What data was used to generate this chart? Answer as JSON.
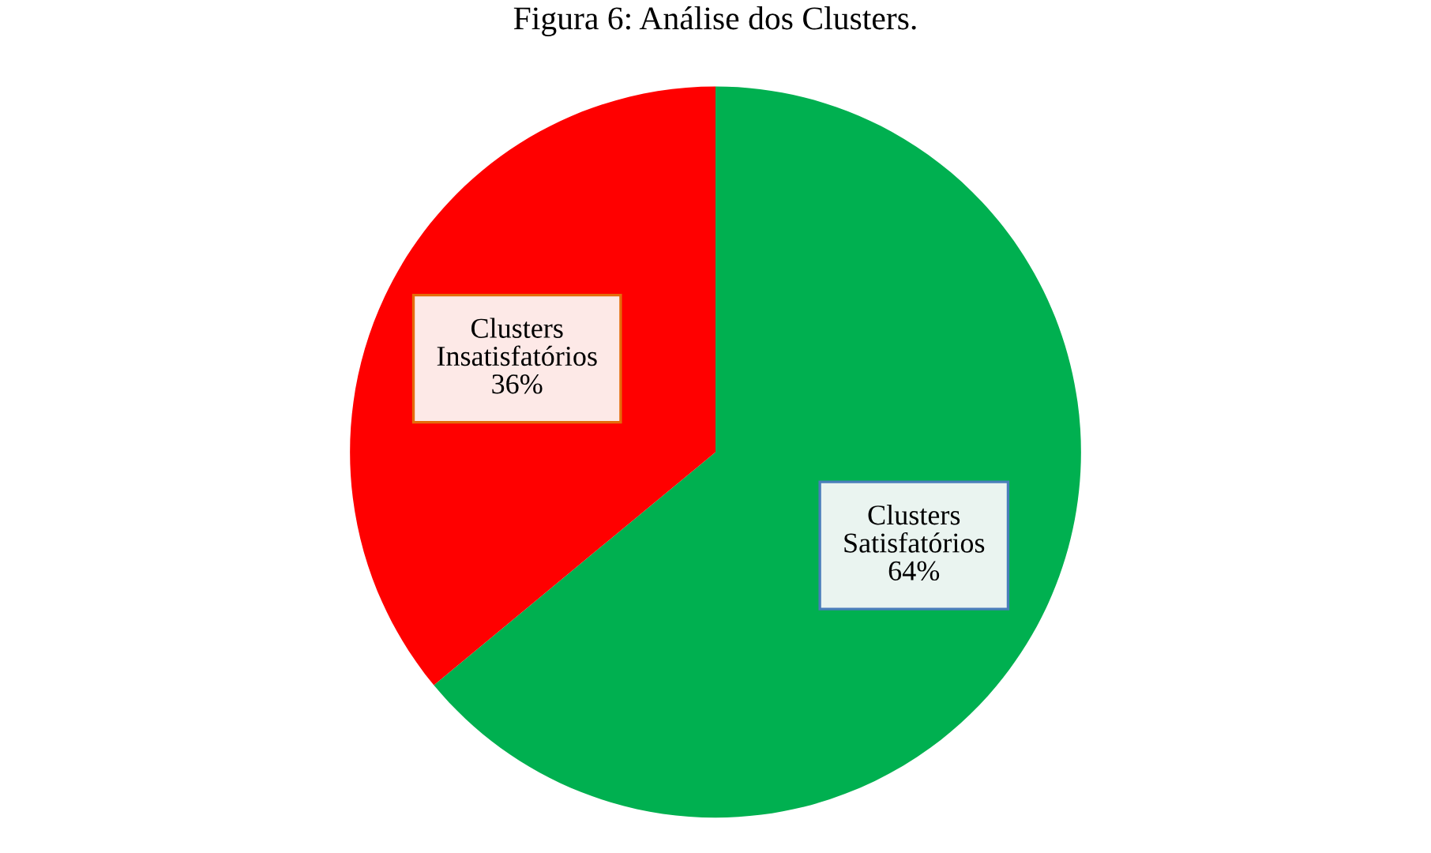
{
  "chart_data": {
    "type": "pie",
    "title": "Figura 6: Análise dos Clusters.",
    "categories": [
      "Clusters Satisfatórios",
      "Clusters Insatisfatórios"
    ],
    "values": [
      64,
      36
    ],
    "colors": [
      "#00b050",
      "#ff0000"
    ],
    "value_labels": [
      "64%",
      "36%"
    ],
    "legend": false
  }
}
